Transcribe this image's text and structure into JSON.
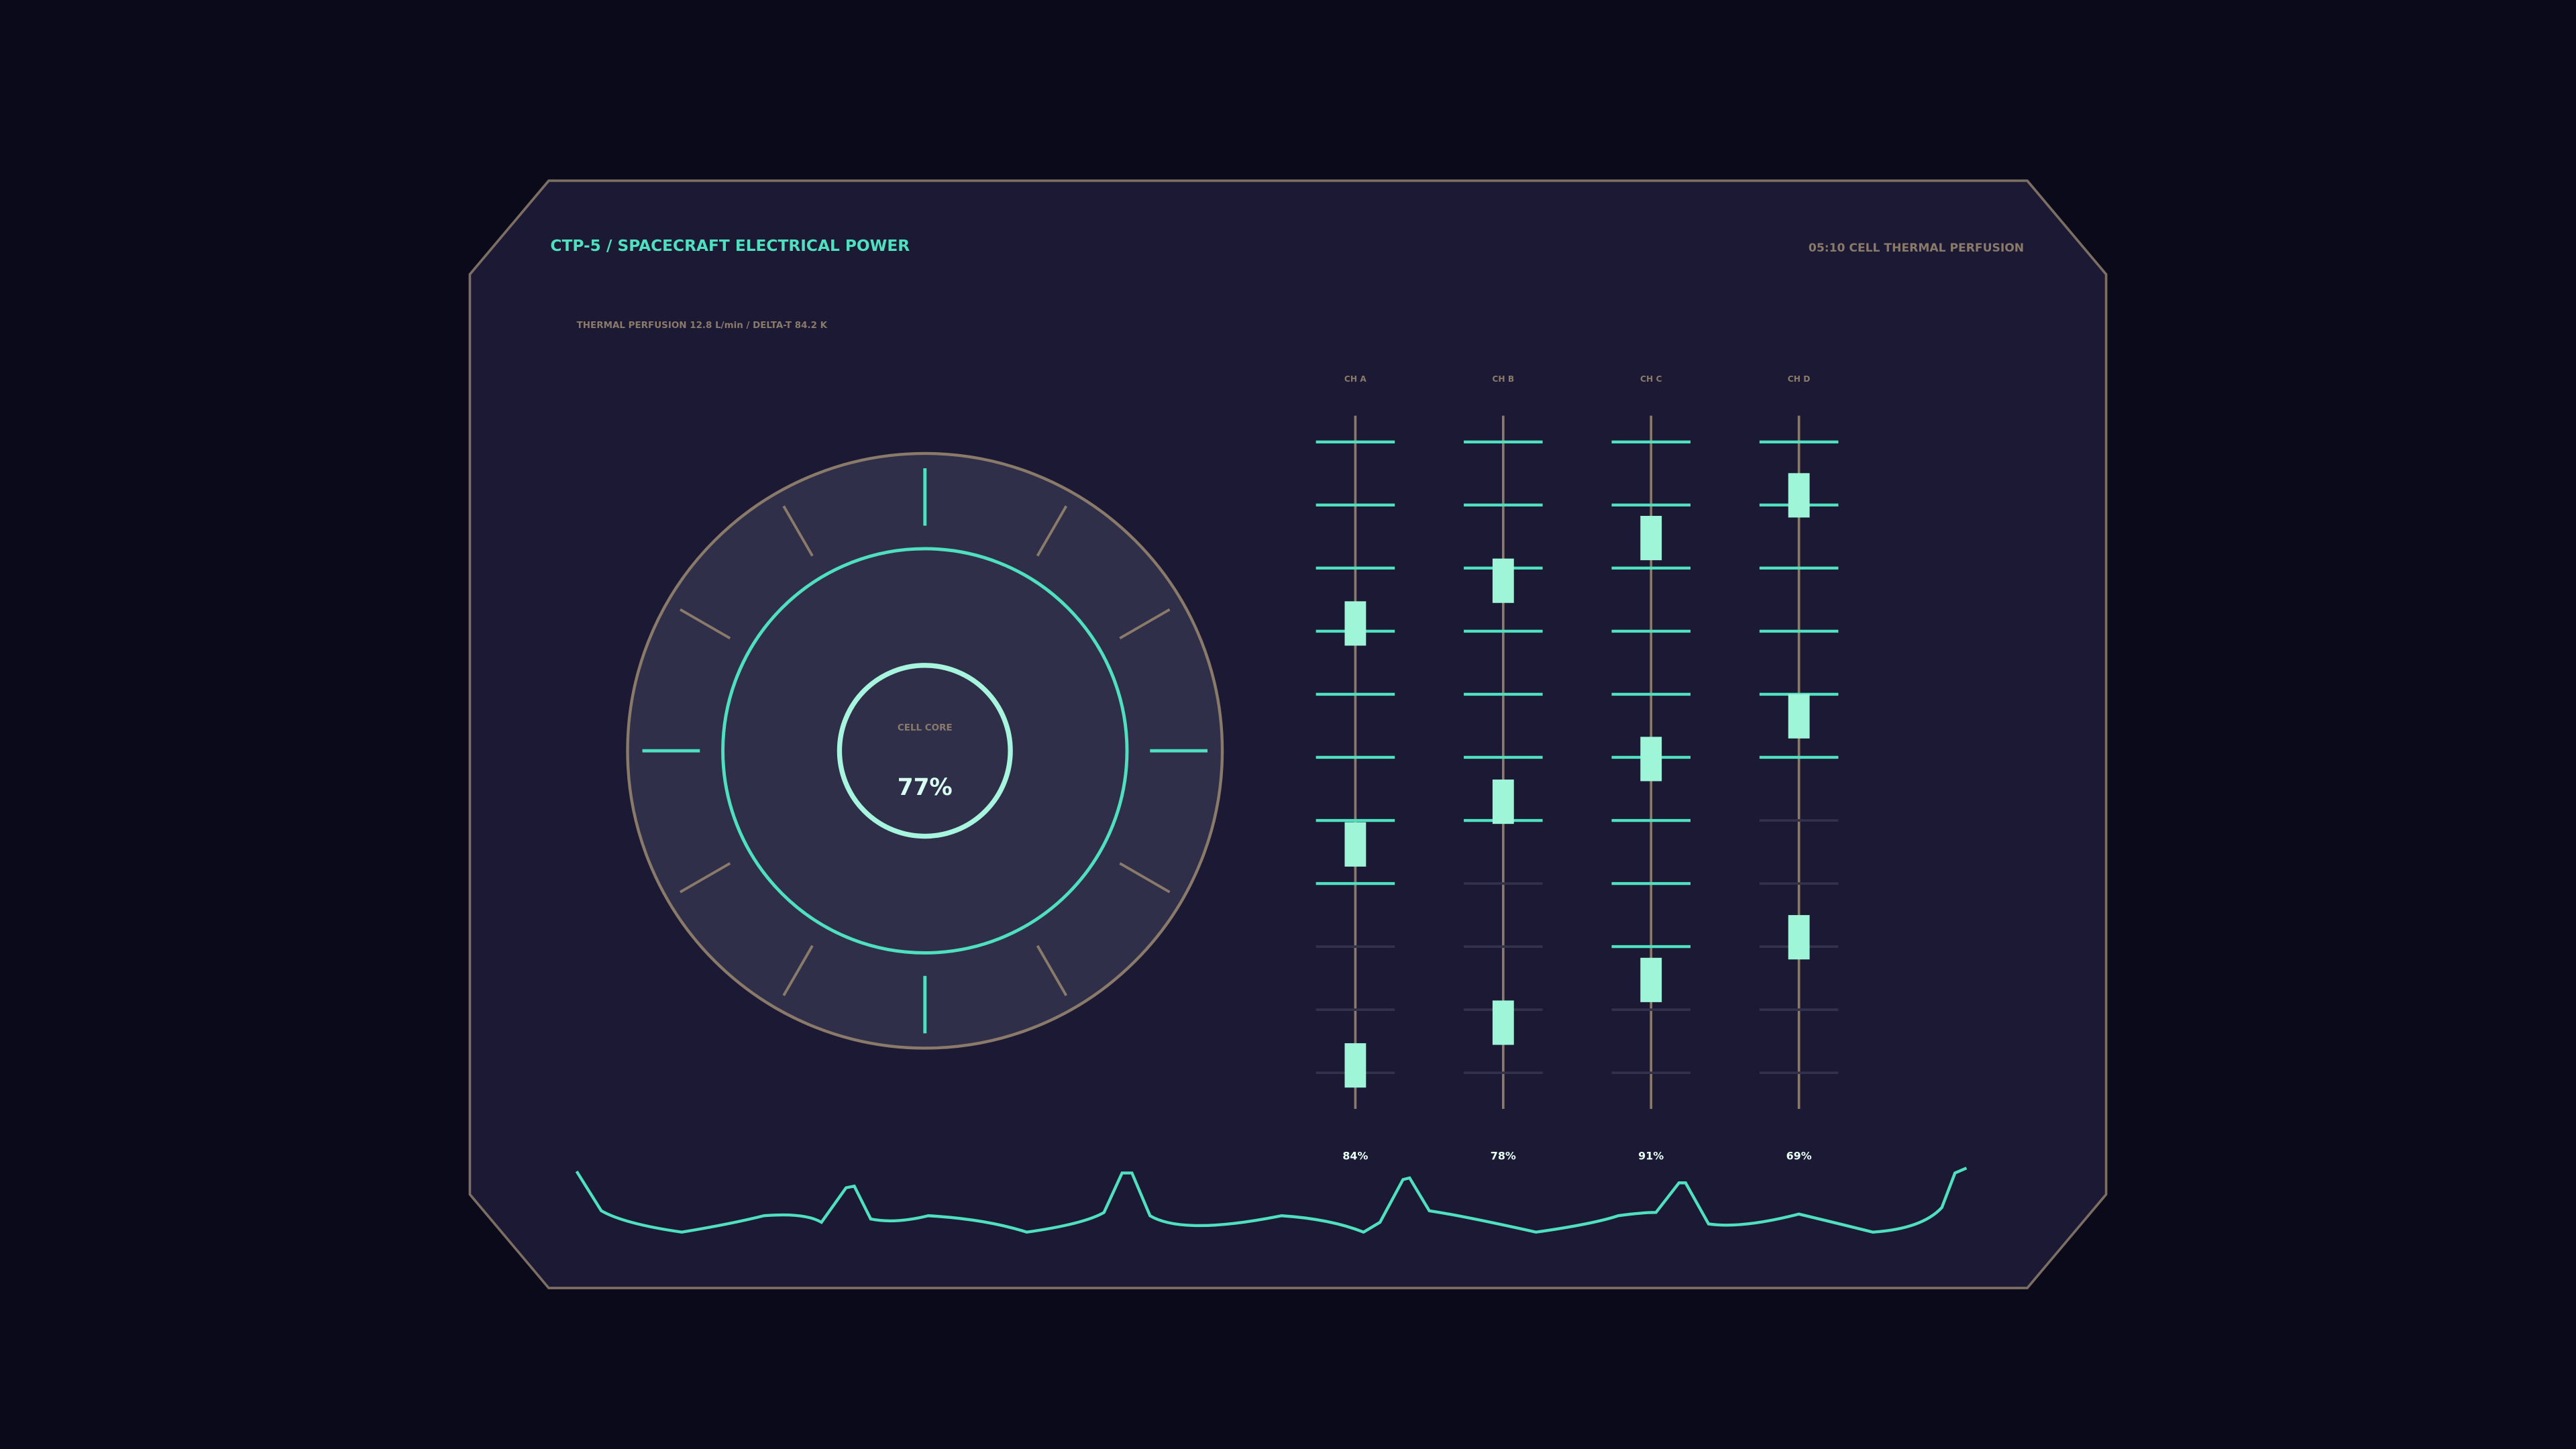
{
  "header": {
    "title": "CTP-5  /  SPACECRAFT ELECTRICAL POWER",
    "status": "05:10  CELL THERMAL PERFUSION",
    "subtitle": "THERMAL PERFUSION  12.8 L/min  /  DELTA-T 84.2 K"
  },
  "gauge": {
    "label": "CELL CORE",
    "value": "77%"
  },
  "channels": [
    {
      "name": "CH A",
      "value": "84%"
    },
    {
      "name": "CH B",
      "value": "78%"
    },
    {
      "name": "CH C",
      "value": "91%"
    },
    {
      "name": "CH D",
      "value": "69%"
    }
  ]
}
